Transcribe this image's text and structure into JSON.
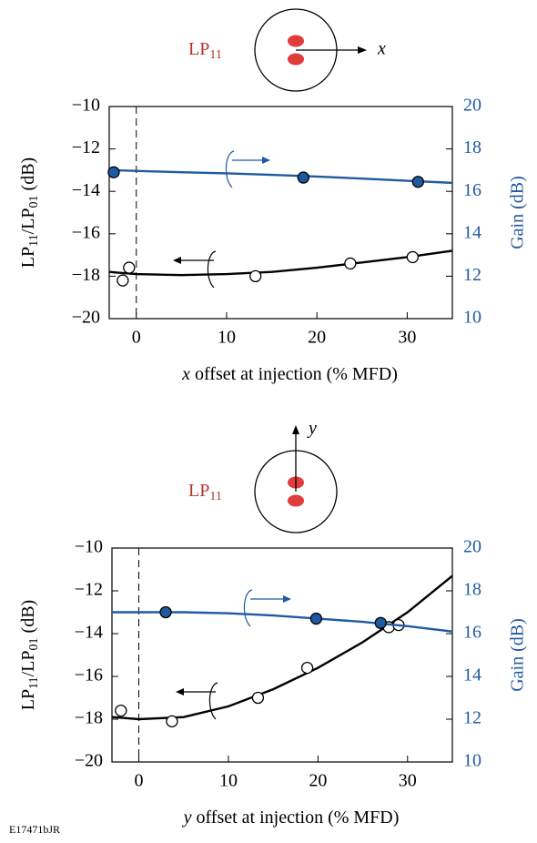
{
  "chart_data": [
    {
      "type": "line",
      "diagram_label": {
        "base": "LP",
        "sub": "11"
      },
      "diagram_axis": "x",
      "xlabel": [
        {
          "text": "x",
          "italic": true
        },
        {
          "text": " offset at injection (% MFD)"
        }
      ],
      "ylabel": [
        {
          "text": "LP"
        },
        {
          "text": "11",
          "sub": true
        },
        {
          "text": "/LP"
        },
        {
          "text": "01",
          "sub": true
        },
        {
          "text": " (dB)"
        }
      ],
      "y2label": "Gain (dB)",
      "xlim": [
        -3,
        35
      ],
      "xticks": [
        0,
        10,
        20,
        30
      ],
      "ylim": [
        -20,
        -10
      ],
      "yticks": [
        {
          "value": -20,
          "label": "−20"
        },
        {
          "value": -18,
          "label": "−18"
        },
        {
          "value": -16,
          "label": "−16"
        },
        {
          "value": -14,
          "label": "−14"
        },
        {
          "value": -12,
          "label": "−12"
        },
        {
          "value": -10,
          "label": "−10"
        }
      ],
      "y2lim": [
        10,
        20
      ],
      "y2ticks": [
        10,
        12,
        14,
        16,
        18,
        20
      ],
      "vline": 0,
      "series": [
        {
          "color": "#000000",
          "line": true,
          "x": [
            -3,
            0,
            5,
            10,
            15,
            20,
            25,
            30,
            35
          ],
          "values": [
            -17.8,
            -17.9,
            -17.95,
            -17.9,
            -17.8,
            -17.6,
            -17.35,
            -17.1,
            -16.8
          ]
        },
        {
          "color": "#000000",
          "marker": "open",
          "x": [
            -1.5,
            -0.8,
            13.2,
            23.7,
            30.6
          ],
          "values": [
            -18.2,
            -17.6,
            -18.0,
            -17.4,
            -17.1
          ]
        },
        {
          "color": "#1f5aa0",
          "line": true,
          "axis": "y2",
          "x": [
            -3,
            5,
            10,
            15,
            20,
            25,
            30,
            35
          ],
          "values": [
            17.0,
            16.9,
            16.85,
            16.78,
            16.7,
            16.6,
            16.5,
            16.4
          ]
        },
        {
          "color": "#1f5aa0",
          "marker": "filled",
          "axis": "y2",
          "x": [
            -2.5,
            18.5,
            31.2
          ],
          "values": [
            16.9,
            16.65,
            16.45
          ]
        }
      ]
    },
    {
      "type": "line",
      "diagram_label": {
        "base": "LP",
        "sub": "11"
      },
      "diagram_axis": "y",
      "xlabel": [
        {
          "text": "y",
          "italic": true
        },
        {
          "text": " offset at injection (% MFD)"
        }
      ],
      "ylabel": [
        {
          "text": "LP"
        },
        {
          "text": "11",
          "sub": true
        },
        {
          "text": "/LP"
        },
        {
          "text": "01",
          "sub": true
        },
        {
          "text": " (dB)"
        }
      ],
      "y2label": "Gain (dB)",
      "xlim": [
        -3,
        35
      ],
      "xticks": [
        0,
        10,
        20,
        30
      ],
      "ylim": [
        -20,
        -10
      ],
      "yticks": [
        {
          "value": -20,
          "label": "−20"
        },
        {
          "value": -18,
          "label": "−18"
        },
        {
          "value": -16,
          "label": "−16"
        },
        {
          "value": -14,
          "label": "−14"
        },
        {
          "value": -12,
          "label": "−12"
        },
        {
          "value": -10,
          "label": "−10"
        }
      ],
      "y2lim": [
        10,
        20
      ],
      "y2ticks": [
        10,
        12,
        14,
        16,
        18,
        20
      ],
      "vline": 0,
      "series": [
        {
          "color": "#000000",
          "line": true,
          "x": [
            -3,
            0,
            5,
            10,
            15,
            20,
            25,
            30,
            35
          ],
          "values": [
            -17.9,
            -18.0,
            -17.9,
            -17.4,
            -16.6,
            -15.6,
            -14.4,
            -13.0,
            -11.3
          ]
        },
        {
          "color": "#000000",
          "marker": "open",
          "x": [
            -2,
            3.7,
            13.3,
            18.8,
            27.9,
            29
          ],
          "values": [
            -17.6,
            -18.1,
            -17.0,
            -15.6,
            -13.7,
            -13.6
          ]
        },
        {
          "color": "#1f5aa0",
          "line": true,
          "axis": "y2",
          "x": [
            -3,
            5,
            10,
            15,
            20,
            25,
            30,
            35
          ],
          "values": [
            17.0,
            17.0,
            16.95,
            16.85,
            16.7,
            16.55,
            16.35,
            16.1
          ]
        },
        {
          "color": "#1f5aa0",
          "marker": "filled",
          "axis": "y2",
          "x": [
            3,
            19.8,
            27
          ],
          "values": [
            17.0,
            16.7,
            16.5
          ]
        }
      ]
    }
  ],
  "footer": "E17471bJR"
}
